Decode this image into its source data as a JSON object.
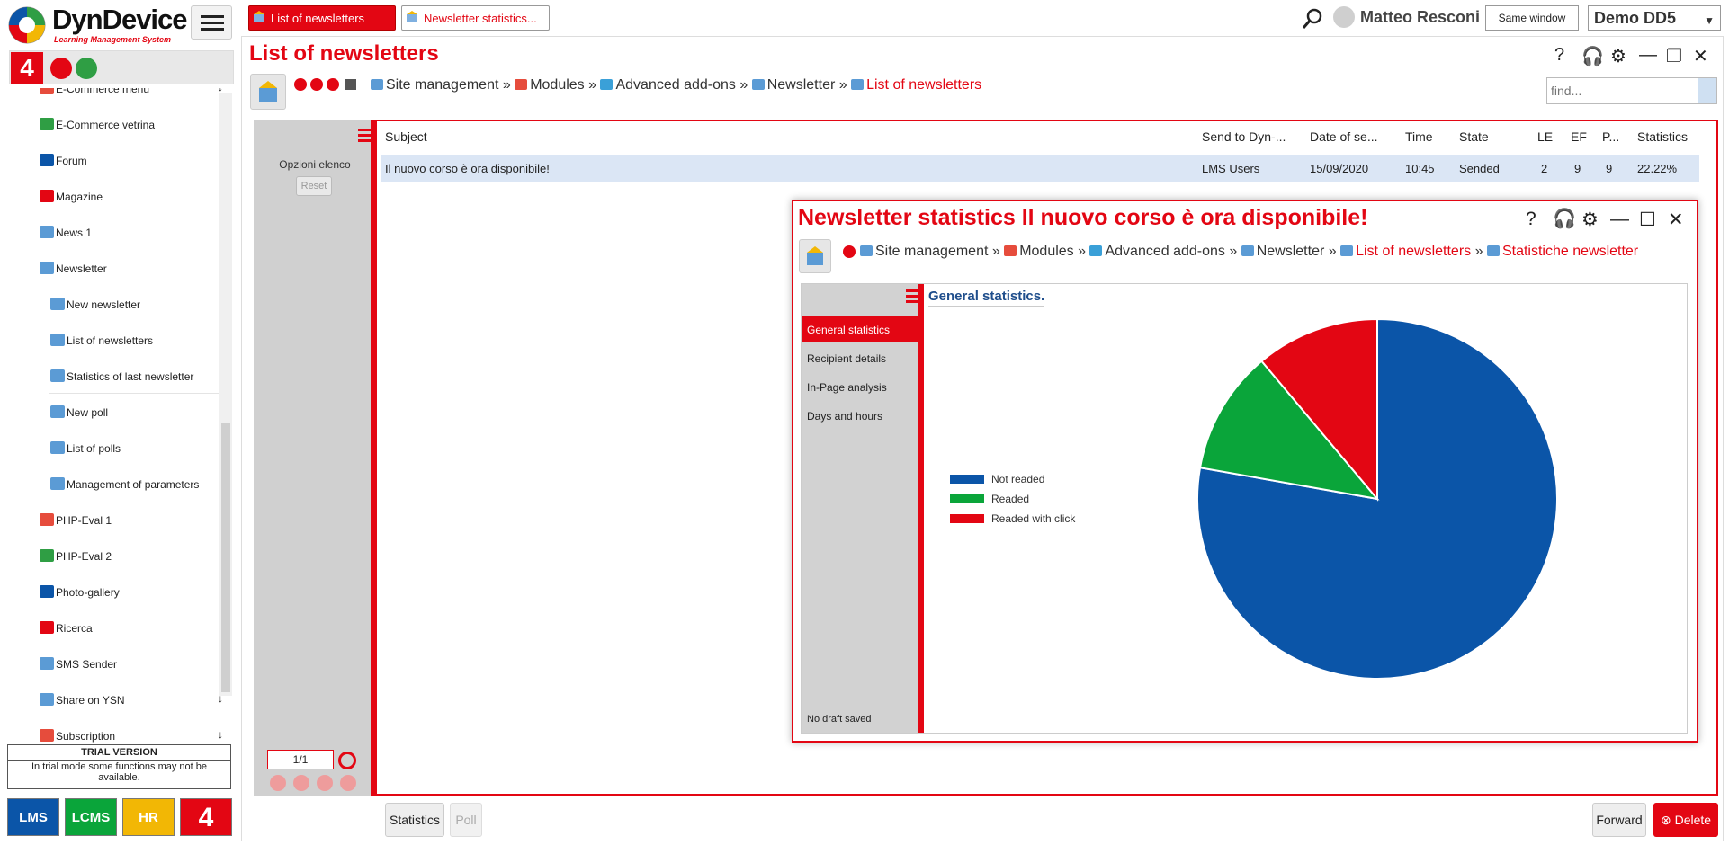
{
  "app": {
    "brand": "DynDevice",
    "subtitle": "Learning Management System",
    "tabs": [
      {
        "label": "List of newsletters",
        "active": true
      },
      {
        "label": "Newsletter statistics...",
        "active": false
      }
    ],
    "user": "Matteo Resconi",
    "same_window": "Same window",
    "environment": "Demo DD5",
    "brand_color": "#e30613"
  },
  "sidebar": {
    "four": "4",
    "items": [
      {
        "label": "E-Commerce menu",
        "sub": false
      },
      {
        "label": "E-Commerce vetrina",
        "sub": false
      },
      {
        "label": "Forum",
        "sub": false
      },
      {
        "label": "Magazine",
        "sub": false
      },
      {
        "label": "News 1",
        "sub": false
      },
      {
        "label": "Newsletter",
        "sub": false,
        "expanded": true
      },
      {
        "label": "New newsletter",
        "sub": true
      },
      {
        "label": "List of newsletters",
        "sub": true
      },
      {
        "label": "Statistics of last newsletter",
        "sub": true
      },
      {
        "label": "New poll",
        "sub": true
      },
      {
        "label": "List of polls",
        "sub": true
      },
      {
        "label": "Management of parameters",
        "sub": true
      },
      {
        "label": "PHP-Eval 1",
        "sub": false
      },
      {
        "label": "PHP-Eval 2",
        "sub": false
      },
      {
        "label": "Photo-gallery",
        "sub": false
      },
      {
        "label": "Ricerca",
        "sub": false
      },
      {
        "label": "SMS Sender",
        "sub": false
      },
      {
        "label": "Share on YSN",
        "sub": false
      },
      {
        "label": "Subscription",
        "sub": false
      }
    ],
    "trial_title": "TRIAL VERSION",
    "trial_text": "In trial mode some functions may not be available.",
    "products": [
      "LMS",
      "LCMS",
      "HR",
      "4"
    ]
  },
  "main": {
    "title": "List of newsletters",
    "breadcrumb": [
      "Site management",
      "Modules",
      "Advanced add-ons",
      "Newsletter",
      "List of newsletters"
    ],
    "find_placeholder": "find...",
    "options_label": "Opzioni elenco",
    "reset_label": "Reset",
    "pager": {
      "page": "1",
      "total": "/1"
    },
    "columns": [
      "Subject",
      "Send to Dyn-...",
      "Date of se...",
      "Time",
      "State",
      "LE",
      "EF",
      "P...",
      "Statistics"
    ],
    "rows": [
      [
        "Il nuovo corso è ora disponibile!",
        "LMS Users",
        "15/09/2020",
        "10:45",
        "Sended",
        "2",
        "9",
        "9",
        "22.22%"
      ]
    ],
    "buttons": {
      "statistics": "Statistics",
      "poll": "Poll",
      "forward": "Forward",
      "delete": "Delete"
    }
  },
  "modal": {
    "title": "Newsletter statistics Il nuovo corso è ora disponibile!",
    "breadcrumb": [
      "Site management",
      "Modules",
      "Advanced add-ons",
      "Newsletter",
      "List of newsletters",
      "Statistiche newsletter"
    ],
    "nav": [
      "General statistics",
      "Recipient details",
      "In-Page analysis",
      "Days and hours"
    ],
    "no_draft": "No draft saved",
    "section_title": "General statistics."
  },
  "chart_data": {
    "type": "pie",
    "categories": [
      "Not readed",
      "Readed",
      "Readed with click"
    ],
    "values": [
      77.78,
      11.11,
      11.11
    ],
    "colors": [
      "#0b55a8",
      "#0aa53a",
      "#e30613"
    ],
    "legend": "left"
  }
}
